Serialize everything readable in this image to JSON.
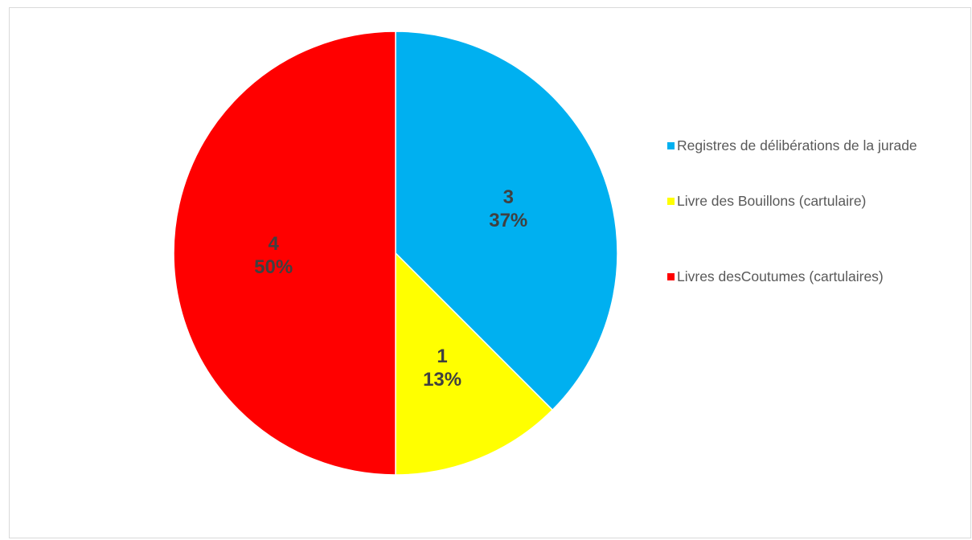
{
  "chart_data": {
    "type": "pie",
    "title": "",
    "legend_position": "right",
    "slices": [
      {
        "label": "Registres de délibérations de la jurade",
        "value": 3,
        "percent": "37%",
        "color": "#00b0f0"
      },
      {
        "label": "Livre des Bouillons (cartulaire)",
        "value": 1,
        "percent": "13%",
        "color": "#ffff00"
      },
      {
        "label": "Livres desCoutumes (cartulaires)",
        "value": 4,
        "percent": "50%",
        "color": "#ff0000"
      }
    ]
  }
}
